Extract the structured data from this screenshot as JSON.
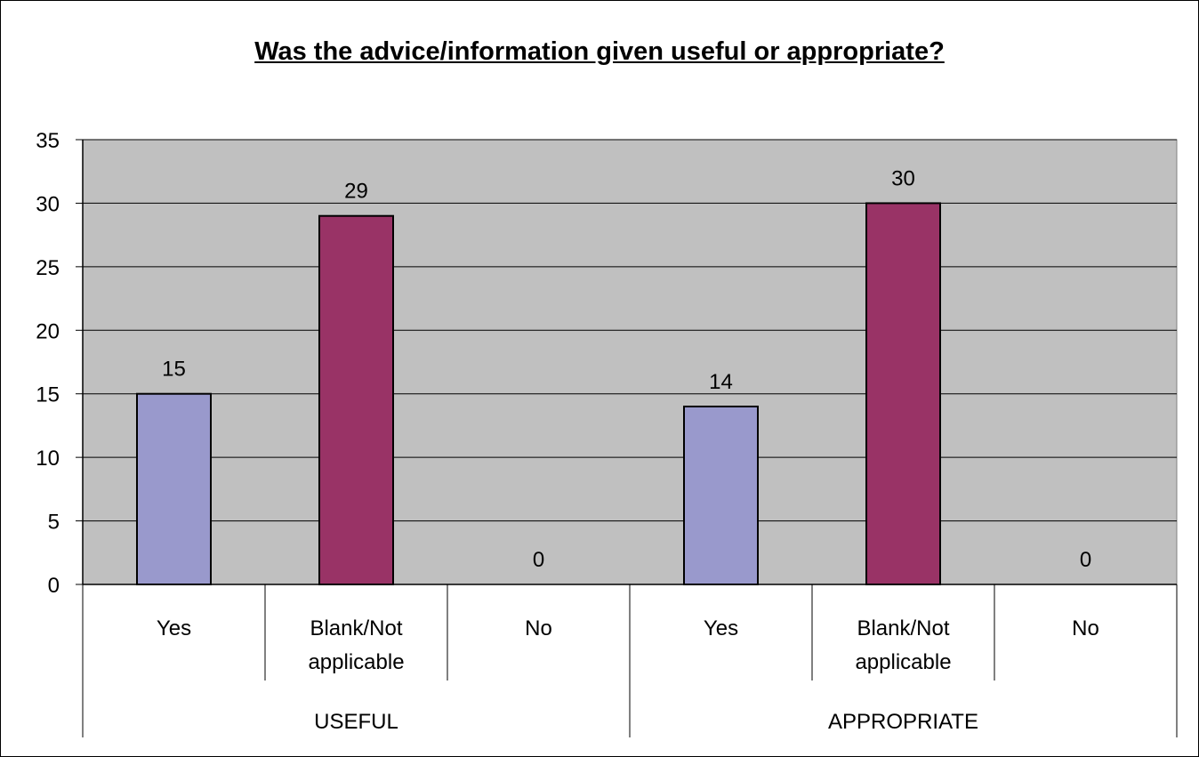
{
  "chart_data": {
    "type": "bar",
    "title": "Was the advice/information given useful or appropriate?",
    "groups": [
      "USEFUL",
      "APPROPRIATE"
    ],
    "categories": [
      {
        "group": "USEFUL",
        "label": "Yes"
      },
      {
        "group": "USEFUL",
        "label": "Blank/Not applicable"
      },
      {
        "group": "USEFUL",
        "label": "No"
      },
      {
        "group": "APPROPRIATE",
        "label": "Yes"
      },
      {
        "group": "APPROPRIATE",
        "label": "Blank/Not applicable"
      },
      {
        "group": "APPROPRIATE",
        "label": "No"
      }
    ],
    "values": [
      15,
      29,
      0,
      14,
      30,
      0
    ],
    "data_labels": [
      "15",
      "29",
      "0",
      "14",
      "30",
      "0"
    ],
    "yticks": [
      "0",
      "5",
      "10",
      "15",
      "20",
      "25",
      "30",
      "35"
    ],
    "ylim": [
      0,
      35
    ],
    "grid": true,
    "colors": {
      "Yes": "#9999cc",
      "Blank/Not applicable": "#993366",
      "plot_background": "#c0c0c0"
    }
  }
}
